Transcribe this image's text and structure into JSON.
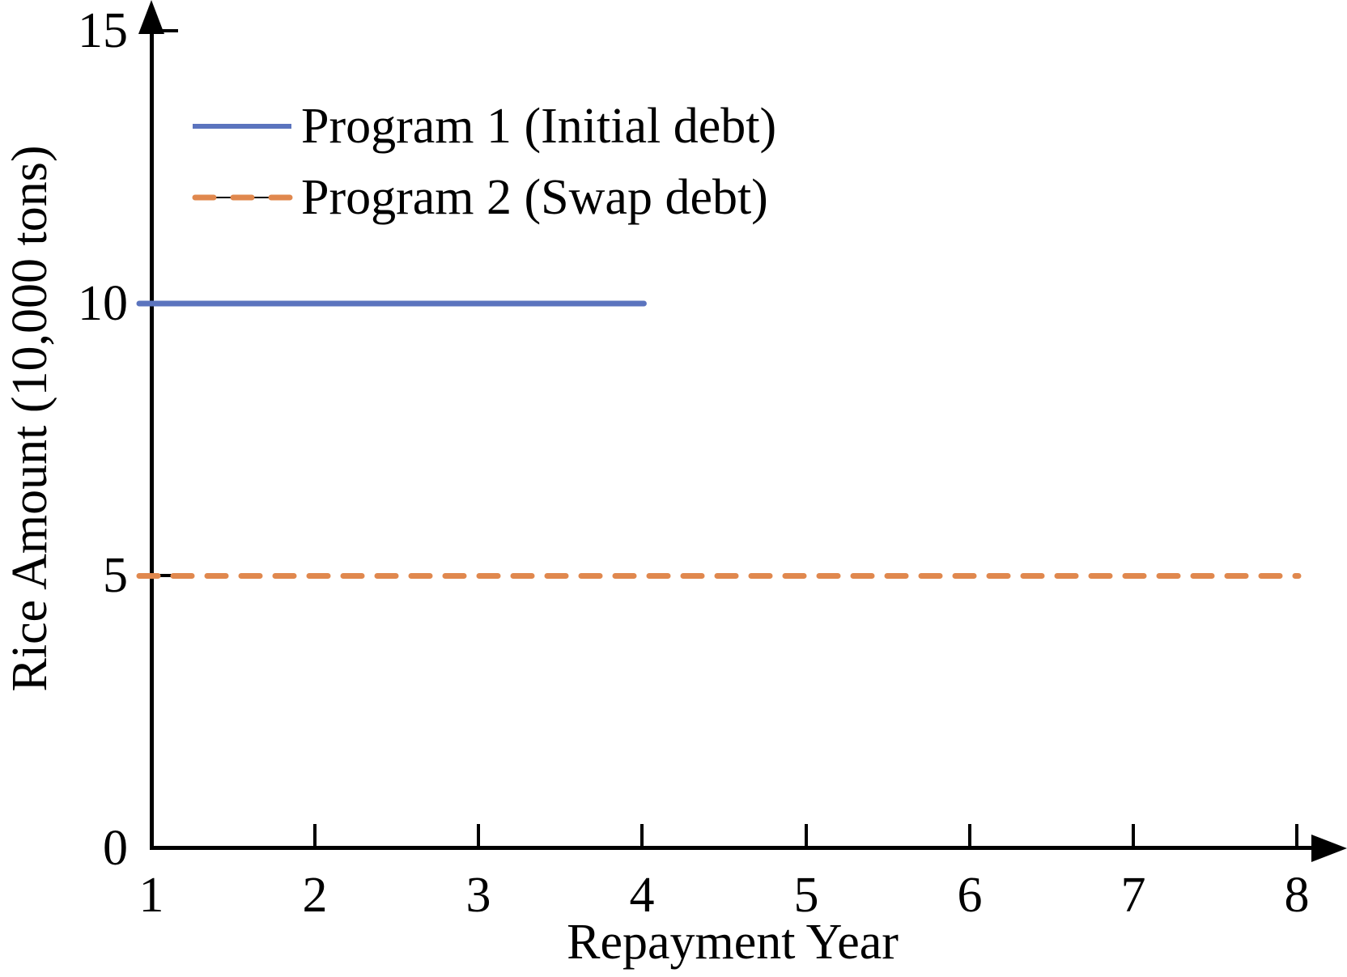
{
  "chart_data": {
    "type": "line",
    "title": "",
    "xlabel": "Repayment Year",
    "ylabel": "Rice Amount (10,000 tons)",
    "xlim": [
      1,
      8
    ],
    "ylim": [
      0,
      15
    ],
    "xticks": [
      1,
      2,
      3,
      4,
      5,
      6,
      7,
      8
    ],
    "yticks": [
      0,
      5,
      10,
      15
    ],
    "grid": false,
    "legend_position": "upper-left",
    "axis_color": "#000000",
    "background_color": "#ffffff",
    "series": [
      {
        "name": "Program 1 (Initial debt)",
        "color": "#5b74be",
        "style": "solid",
        "x": [
          1,
          4
        ],
        "y": [
          10,
          10
        ]
      },
      {
        "name": "Program 2 (Swap debt)",
        "color": "#e0884e",
        "style": "dashed",
        "x": [
          1,
          8
        ],
        "y": [
          5,
          5
        ]
      }
    ]
  }
}
